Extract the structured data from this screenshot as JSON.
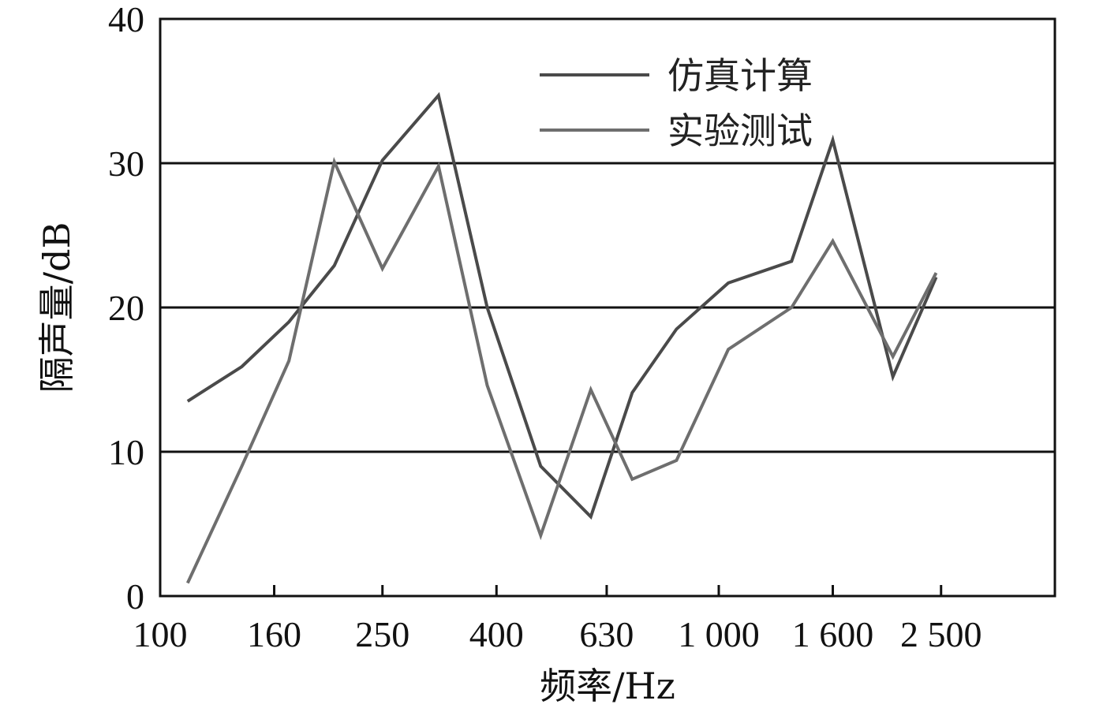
{
  "chart_data": {
    "type": "line",
    "xlabel": "频率/Hz",
    "ylabel": "隔声量/dB",
    "x_tick_labels": [
      "100",
      "160",
      "250",
      "400",
      "630",
      "1 000",
      "1 600",
      "2 500"
    ],
    "y_tick_labels": [
      "0",
      "10",
      "20",
      "30",
      "40"
    ],
    "ylim": [
      0,
      40
    ],
    "grid": "horizontal",
    "legend_position": "top-right",
    "x": [
      112,
      140,
      170,
      205,
      250,
      315,
      385,
      480,
      590,
      700,
      840,
      1040,
      1350,
      1600,
      2050,
      2450
    ],
    "series": [
      {
        "name": "仿真计算",
        "color": "#4a4a4a",
        "values": [
          13.5,
          15.9,
          19.0,
          22.9,
          30.2,
          34.7,
          20.0,
          9.0,
          5.5,
          14.1,
          18.5,
          21.7,
          23.2,
          31.6,
          15.2,
          22.1
        ]
      },
      {
        "name": "实验测试",
        "color": "#6e6e6e",
        "values": [
          0.9,
          9.0,
          16.3,
          30.1,
          22.7,
          29.8,
          14.6,
          4.2,
          14.3,
          8.1,
          9.4,
          17.1,
          20.0,
          24.6,
          16.6,
          22.4
        ]
      }
    ]
  }
}
